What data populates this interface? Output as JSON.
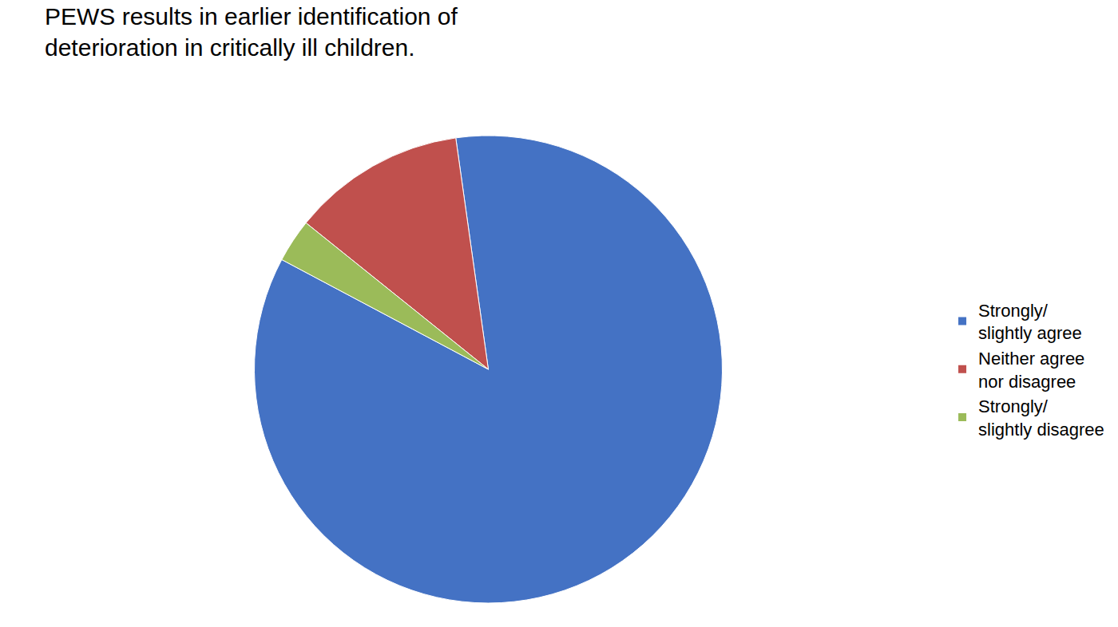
{
  "chart_data": {
    "type": "pie",
    "title": "PEWS results in earlier identification of\ndeterioration in critically ill children.",
    "categories": [
      "Strongly/\nslightly agree",
      "Neither agree\nnor disagree",
      "Strongly/\nslightly disagree"
    ],
    "values": [
      85,
      12,
      3
    ],
    "colors": [
      "#4472C4",
      "#C0504D",
      "#9BBB59"
    ],
    "legend": "right",
    "data_labels": false
  }
}
